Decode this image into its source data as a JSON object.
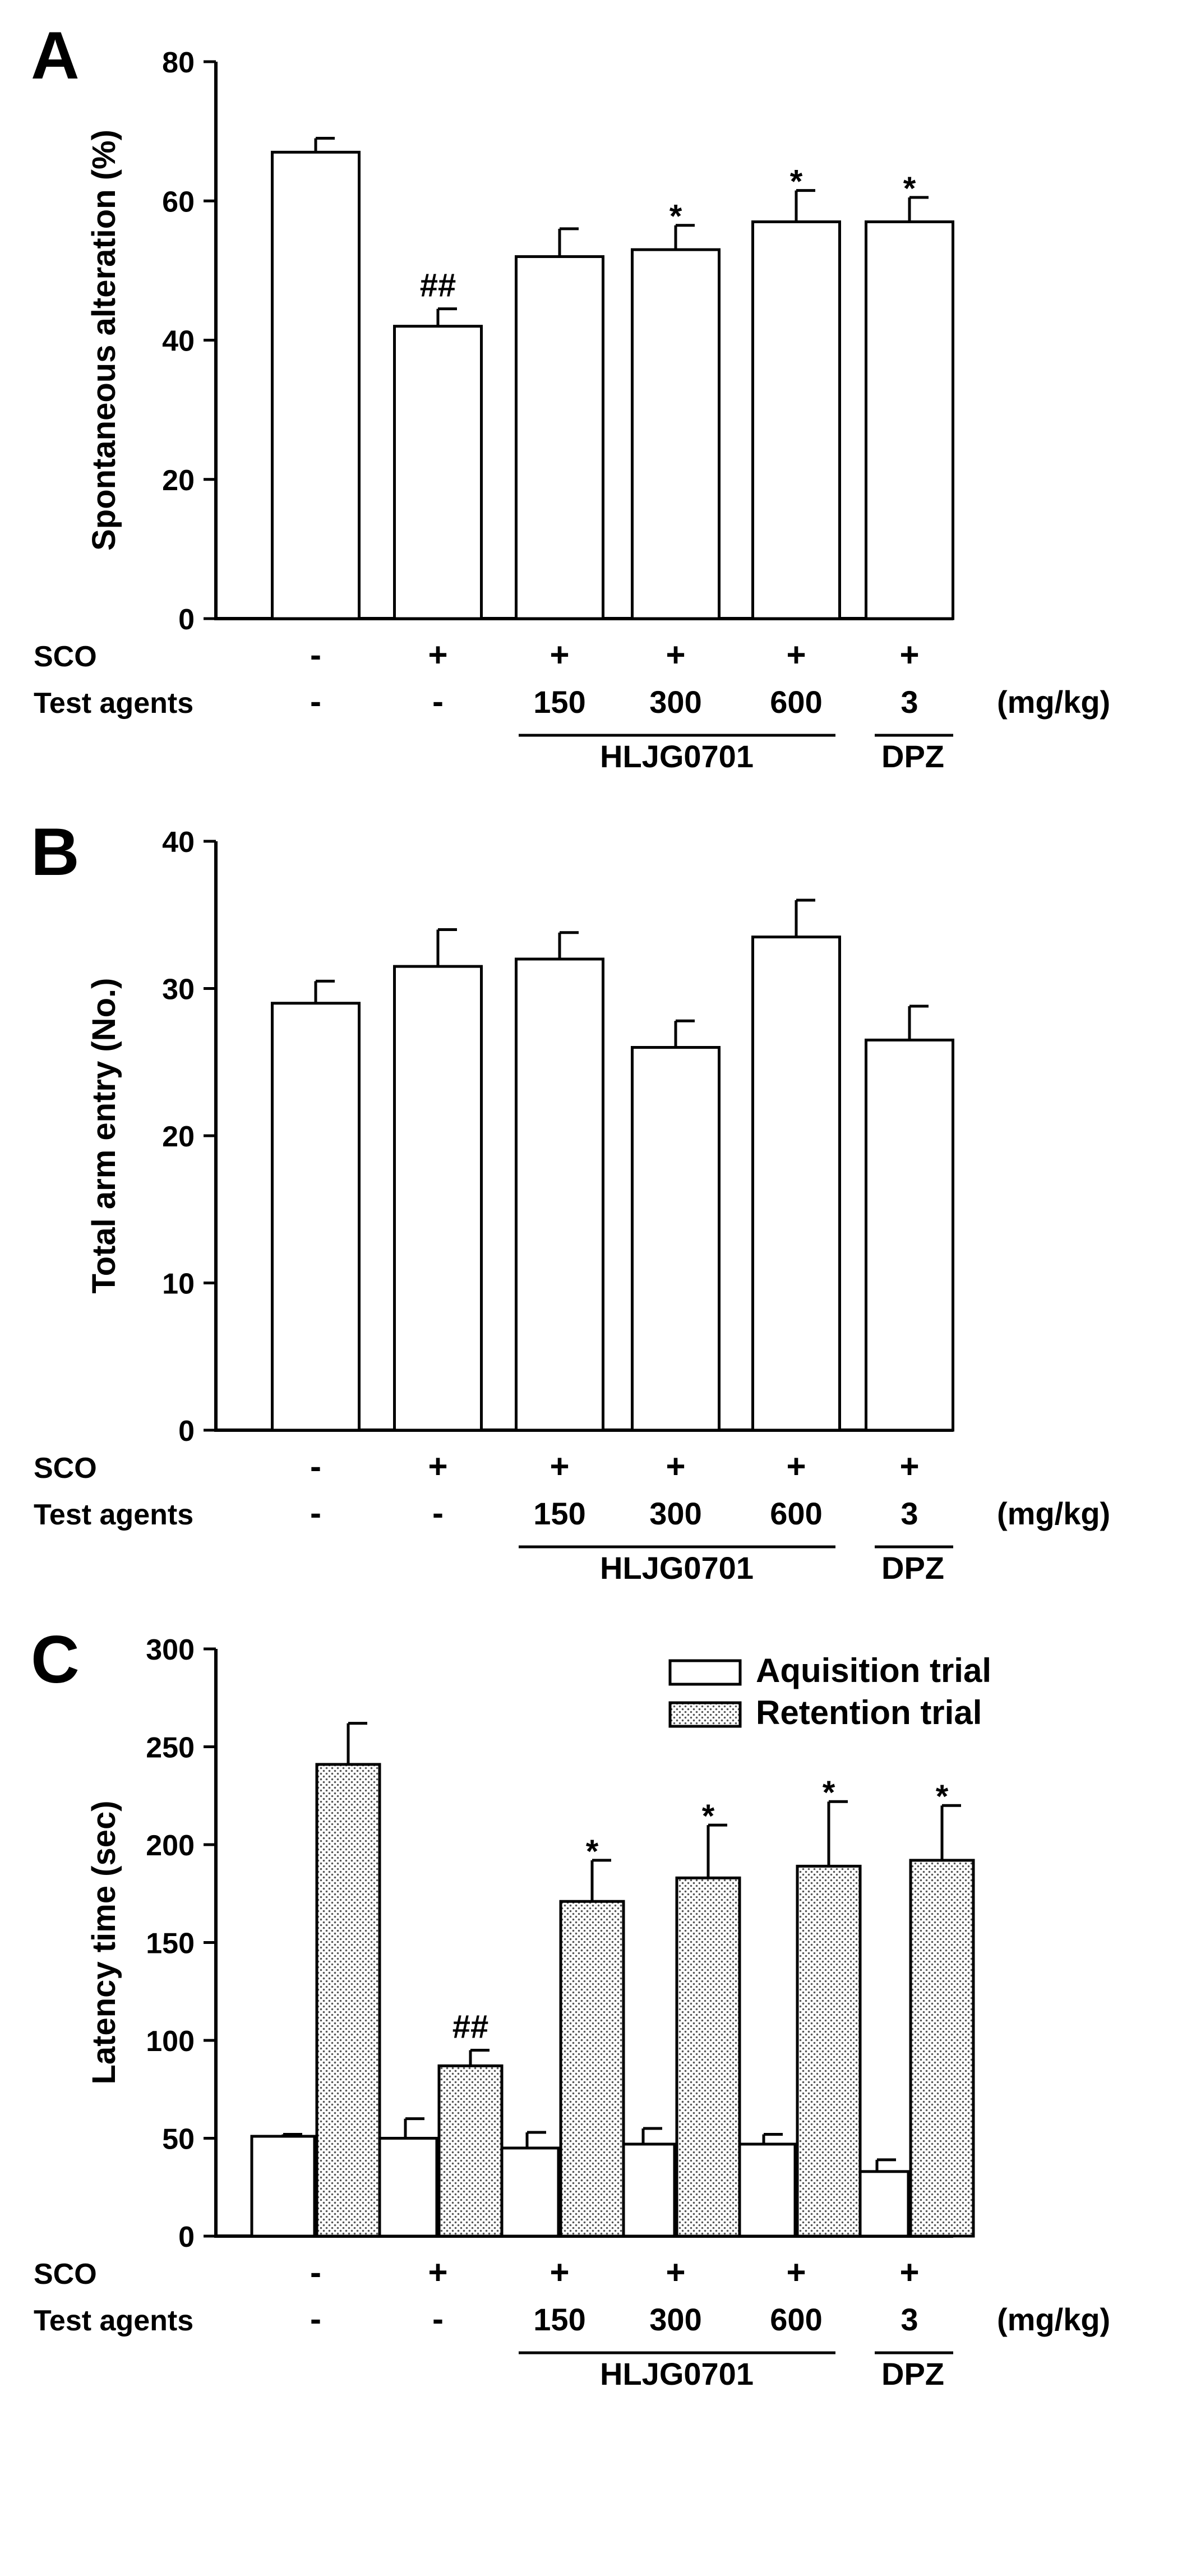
{
  "chart_data": [
    {
      "id": "A",
      "type": "bar",
      "panel_label": "A",
      "ylabel": "Spontaneous alteration (%)",
      "ylim": [
        0,
        80
      ],
      "yticks": [
        0,
        20,
        40,
        60,
        80
      ],
      "values": [
        67,
        42,
        52,
        53,
        57,
        57
      ],
      "errors": [
        2,
        2.5,
        4,
        3.5,
        4.5,
        3.5
      ],
      "annotations": [
        "",
        "##",
        "",
        "*",
        "*",
        "*"
      ]
    },
    {
      "id": "B",
      "type": "bar",
      "panel_label": "B",
      "ylabel": "Total arm entry (No.)",
      "ylim": [
        0,
        40
      ],
      "yticks": [
        0,
        10,
        20,
        30,
        40
      ],
      "values": [
        29,
        31.5,
        32,
        26,
        33.5,
        26.5
      ],
      "errors": [
        1.5,
        2.5,
        1.8,
        1.8,
        2.5,
        2.3
      ],
      "annotations": [
        "",
        "",
        "",
        "",
        "",
        ""
      ]
    },
    {
      "id": "C",
      "type": "bar",
      "panel_label": "C",
      "ylabel": "Latency time (sec)",
      "ylim": [
        0,
        300
      ],
      "yticks": [
        0,
        50,
        100,
        150,
        200,
        250,
        300
      ],
      "legend_position": "top-right",
      "series": [
        {
          "name": "Aquisition trial",
          "values": [
            51,
            50,
            45,
            47,
            47,
            33
          ],
          "errors": [
            1,
            10,
            8,
            8,
            5,
            6
          ],
          "annotations": [
            "",
            "",
            "",
            "",
            "",
            ""
          ]
        },
        {
          "name": "Retention trial",
          "values": [
            241,
            87,
            171,
            183,
            189,
            192
          ],
          "errors": [
            21,
            8,
            21,
            27,
            33,
            28
          ],
          "annotations": [
            "",
            "##",
            "*",
            "*",
            "*",
            "*"
          ]
        }
      ]
    }
  ],
  "conditions": {
    "sco_label": "SCO",
    "sco": [
      "-",
      "+",
      "+",
      "+",
      "+",
      "+"
    ],
    "agents_label": "Test agents",
    "agents": [
      "-",
      "-",
      "150",
      "300",
      "600",
      "3"
    ],
    "unit": "(mg/kg)",
    "group1": "HLJG0701",
    "group2": "DPZ"
  }
}
